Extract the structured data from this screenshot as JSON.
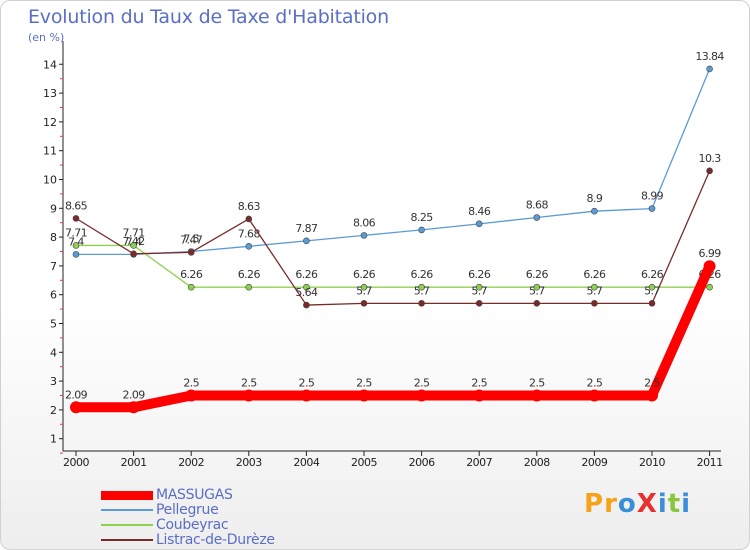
{
  "chart_data": {
    "type": "line",
    "title": "Evolution du Taux de Taxe d'Habitation",
    "subtitle": "(en %)",
    "xlabel": "",
    "ylabel": "",
    "x": [
      "2000",
      "2001",
      "2002",
      "2003",
      "2004",
      "2005",
      "2006",
      "2007",
      "2008",
      "2009",
      "2010",
      "2011"
    ],
    "ylim": [
      0,
      14
    ],
    "yticks": [
      "1",
      "2",
      "3",
      "4",
      "5",
      "6",
      "7",
      "8",
      "9",
      "10",
      "11",
      "12",
      "13",
      "14"
    ],
    "grid": false,
    "legend_position": "bottom-left",
    "series": [
      {
        "name": "MASSUGAS",
        "color": "#ff0000",
        "values": [
          2.09,
          2.09,
          2.5,
          2.5,
          2.5,
          2.5,
          2.5,
          2.5,
          2.5,
          2.5,
          2.5,
          6.99
        ],
        "labels": [
          "2.09",
          "2.09",
          "2.5",
          "2.5",
          "2.5",
          "2.5",
          "2.5",
          "2.5",
          "2.5",
          "2.5",
          "2.5",
          "6.99"
        ]
      },
      {
        "name": "Pellegrue",
        "color": "#5b9bd5",
        "values": [
          7.4,
          7.4,
          7.5,
          7.68,
          7.87,
          8.06,
          8.25,
          8.46,
          8.68,
          8.9,
          8.99,
          13.84
        ],
        "labels": [
          "7.4",
          "7.4",
          "7.5",
          "7.68",
          "7.87",
          "8.06",
          "8.25",
          "8.46",
          "8.68",
          "8.9",
          "8.99",
          "13.84"
        ]
      },
      {
        "name": "Coubeyrac",
        "color": "#8fd14f",
        "values": [
          7.71,
          7.71,
          6.26,
          6.26,
          6.26,
          6.26,
          6.26,
          6.26,
          6.26,
          6.26,
          6.26,
          6.26
        ],
        "labels": [
          "7.71",
          "7.71",
          "6.26",
          "6.26",
          "6.26",
          "6.26",
          "6.26",
          "6.26",
          "6.26",
          "6.26",
          "6.26",
          "6.26"
        ]
      },
      {
        "name": "Listrac-de-Durèze",
        "color": "#7b2a2a",
        "values": [
          8.65,
          7.42,
          7.47,
          8.63,
          5.64,
          5.7,
          5.7,
          5.7,
          5.7,
          5.7,
          5.7,
          10.3
        ],
        "labels": [
          "8.65",
          "7.42",
          "7.47",
          "8.63",
          "5.64",
          "5.7",
          "5.7",
          "5.7",
          "5.7",
          "5.7",
          "5.7",
          "10.3"
        ]
      }
    ]
  },
  "logo": {
    "text": "ProXiti",
    "colors": [
      "#f7a21b",
      "#f7a21b",
      "#3b8fd9",
      "#e8312e",
      "#3b8fd9",
      "#8cc63f",
      "#3b8fd9"
    ]
  }
}
